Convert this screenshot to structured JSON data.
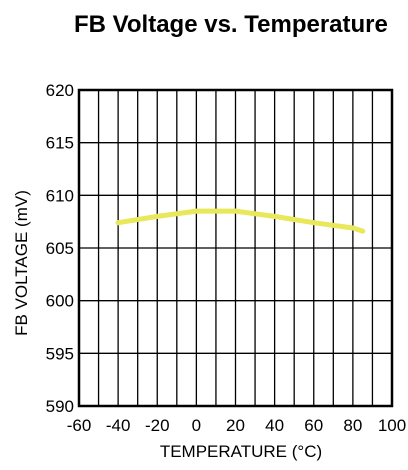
{
  "chart_data": {
    "type": "line",
    "title": "FB Voltage vs. Temperature",
    "xlabel": "TEMPERATURE (°C)",
    "ylabel": "FB VOLTAGE (mV)",
    "xlim": [
      -60,
      100
    ],
    "ylim": [
      590,
      620
    ],
    "x_ticks": [
      -60,
      -40,
      -20,
      0,
      20,
      40,
      60,
      80,
      100
    ],
    "y_ticks": [
      590,
      595,
      600,
      605,
      610,
      615,
      620
    ],
    "x_tick_labels": [
      "-60",
      "-40",
      "-20",
      "0",
      "20",
      "40",
      "60",
      "80",
      "100"
    ],
    "y_tick_labels": [
      "590",
      "595",
      "600",
      "605",
      "610",
      "615",
      "620"
    ],
    "grid": true,
    "series": [
      {
        "color": "#E8E85A",
        "x": [
          -40,
          -20,
          0,
          20,
          40,
          60,
          80,
          85
        ],
        "y": [
          607.4,
          608.0,
          608.5,
          608.5,
          608.0,
          607.4,
          606.9,
          606.6
        ]
      }
    ]
  }
}
